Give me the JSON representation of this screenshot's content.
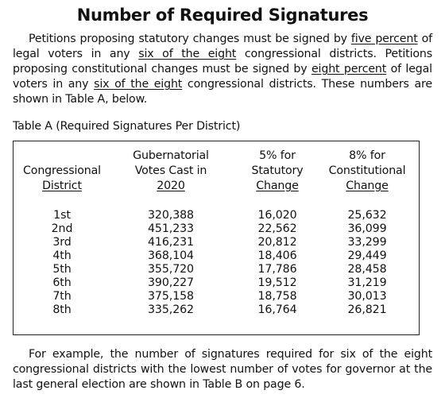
{
  "title": "Number of Required Signatures",
  "intro": {
    "t1": "Petitions proposing statutory changes must be signed by ",
    "u1": "five percent",
    "t2": " of legal voters in any ",
    "u2": "six of the eight",
    "t3": " congressional districts. Petitions proposing constitutional changes must be signed by ",
    "u3": "eight percent",
    "t4": " of legal voters in any ",
    "u4": "six of the eight",
    "t5": " congressional districts. These numbers are shown in Table A, below."
  },
  "table": {
    "caption": "Table A (Required Signatures Per District)",
    "headers": [
      {
        "lines": [
          "Congressional",
          "District"
        ]
      },
      {
        "lines": [
          "Gubernatorial",
          "Votes Cast in",
          "2020"
        ]
      },
      {
        "lines": [
          "5% for",
          "Statutory",
          "Change"
        ]
      },
      {
        "lines": [
          "8% for",
          "Constitutional",
          "Change"
        ]
      }
    ],
    "rows": [
      {
        "district": "1st",
        "votes": "320,388",
        "statutory": "16,020",
        "constitutional": "25,632"
      },
      {
        "district": "2nd",
        "votes": "451,233",
        "statutory": "22,562",
        "constitutional": "36,099"
      },
      {
        "district": "3rd",
        "votes": "416,231",
        "statutory": "20,812",
        "constitutional": "33,299"
      },
      {
        "district": "4th",
        "votes": "368,104",
        "statutory": "18,406",
        "constitutional": "29,449"
      },
      {
        "district": "5th",
        "votes": "355,720",
        "statutory": "17,786",
        "constitutional": "28,458"
      },
      {
        "district": "6th",
        "votes": "390,227",
        "statutory": "19,512",
        "constitutional": "31,219"
      },
      {
        "district": "7th",
        "votes": "375,158",
        "statutory": "18,758",
        "constitutional": "30,013"
      },
      {
        "district": "8th",
        "votes": "335,262",
        "statutory": "16,764",
        "constitutional": "26,821"
      }
    ]
  },
  "outro": "For example, the number of signatures required for six of the eight congressional districts with the lowest number of votes for governor at the last general election are shown in Table B on page 6."
}
